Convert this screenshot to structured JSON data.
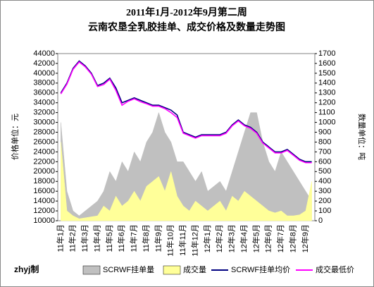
{
  "chart_data": {
    "type": "line",
    "title": "2011年1月-2012年9月第二周",
    "subtitle": "云南农垦全乳胶挂单、成交价格及数量走势图",
    "y_label": "价格单位：元",
    "y2_label": "数量单位：吨",
    "credit": "zhyj制",
    "categories": [
      "11年1月",
      null,
      "11年2月",
      null,
      "11年3月",
      null,
      "11年4月",
      null,
      "11年5月",
      null,
      "11年6月",
      null,
      "11年7月",
      null,
      "11年8月",
      null,
      "11年9月",
      null,
      "11年10月",
      null,
      "11年11月",
      null,
      "11年12月",
      null,
      "12年1月",
      null,
      "12年2月",
      null,
      "12年3月",
      null,
      "12年4月",
      null,
      "12年5月",
      null,
      "12年6月",
      null,
      "12年7月",
      null,
      "12年8月",
      null,
      "12年9月",
      null
    ],
    "series": [
      {
        "name": "SCRWF挂单量",
        "kind": "area",
        "axis": "y2",
        "color": "#c0c0c0",
        "values": [
          1000,
          300,
          100,
          50,
          100,
          150,
          200,
          300,
          500,
          400,
          600,
          500,
          700,
          600,
          800,
          900,
          1100,
          900,
          800,
          600,
          600,
          500,
          400,
          500,
          300,
          350,
          400,
          300,
          500,
          700,
          900,
          1100,
          1100,
          800,
          600,
          500,
          700,
          600,
          500,
          400,
          300,
          200
        ]
      },
      {
        "name": "成交量",
        "kind": "area",
        "axis": "y2",
        "color": "#ffff99",
        "values": [
          800,
          100,
          50,
          20,
          30,
          40,
          50,
          150,
          100,
          250,
          150,
          200,
          300,
          200,
          350,
          400,
          450,
          300,
          500,
          250,
          150,
          100,
          200,
          150,
          100,
          150,
          200,
          100,
          250,
          200,
          300,
          250,
          200,
          150,
          100,
          80,
          100,
          50,
          50,
          60,
          100,
          400
        ]
      },
      {
        "name": "SCRWF挂单均价",
        "kind": "line",
        "color": "#000080",
        "values": [
          36000,
          38000,
          41000,
          42500,
          41500,
          40000,
          37500,
          38000,
          39000,
          37000,
          34000,
          34500,
          35000,
          34500,
          34000,
          33500,
          33500,
          33000,
          32500,
          31500,
          28000,
          27500,
          27000,
          27500,
          27500,
          27500,
          27500,
          28000,
          29500,
          30500,
          29500,
          29000,
          28000,
          26000,
          25000,
          24000,
          24000,
          24500,
          23500,
          22500,
          22000,
          22000
        ]
      },
      {
        "name": "成交最低价",
        "kind": "line",
        "color": "#ff00ff",
        "values": [
          35800,
          37800,
          40800,
          42300,
          41300,
          39800,
          37300,
          37700,
          38800,
          36500,
          33500,
          34300,
          34800,
          34200,
          33800,
          33300,
          33300,
          32800,
          32000,
          31000,
          27800,
          27300,
          26800,
          27300,
          27300,
          27300,
          27300,
          27800,
          29300,
          30300,
          29300,
          28800,
          27800,
          25800,
          24800,
          23800,
          23800,
          24300,
          23300,
          22300,
          21800,
          21800
        ]
      }
    ],
    "ylim": [
      10000,
      44000
    ],
    "yticks": [
      10000,
      12000,
      14000,
      16000,
      18000,
      20000,
      22000,
      24000,
      26000,
      28000,
      30000,
      32000,
      34000,
      36000,
      38000,
      40000,
      42000,
      44000
    ],
    "y2lim": [
      0,
      1700
    ],
    "y2ticks": [
      0,
      100,
      200,
      300,
      400,
      500,
      600,
      700,
      800,
      900,
      1000,
      1100,
      1200,
      1300,
      1400,
      1500,
      1600,
      1700
    ]
  }
}
